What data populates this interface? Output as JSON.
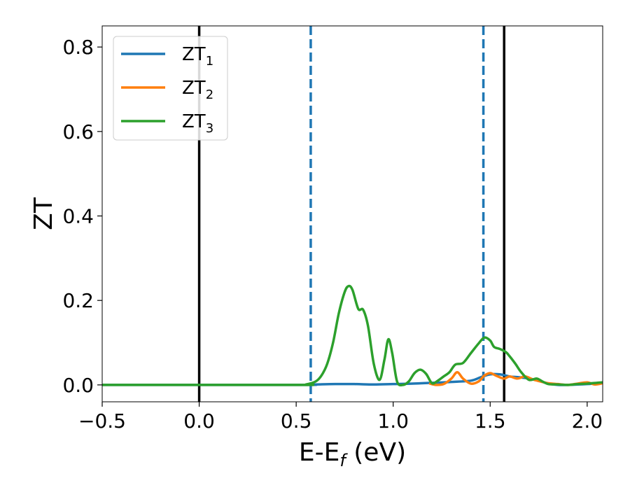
{
  "chart_data": {
    "type": "line",
    "title": "",
    "xlabel": {
      "main": "E-E",
      "sub": "f",
      "suffix": " (eV)"
    },
    "ylabel": "ZT",
    "xlim": [
      -0.5,
      2.08
    ],
    "ylim": [
      -0.04,
      0.85
    ],
    "xticks": [
      -0.5,
      0.0,
      0.5,
      1.0,
      1.5,
      2.0
    ],
    "xtick_labels": [
      "−0.5",
      "0.0",
      "0.5",
      "1.0",
      "1.5",
      "2.0"
    ],
    "yticks": [
      0.0,
      0.2,
      0.4,
      0.6,
      0.8
    ],
    "ytick_labels": [
      "0.0",
      "0.2",
      "0.4",
      "0.6",
      "0.8"
    ],
    "legend_position": "top-left",
    "grid": false,
    "vlines": [
      {
        "x": 0.0,
        "style": "solid",
        "color": "#000000"
      },
      {
        "x": 0.575,
        "style": "dashed",
        "color": "#1f77b4"
      },
      {
        "x": 1.465,
        "style": "dashed",
        "color": "#1f77b4"
      },
      {
        "x": 1.572,
        "style": "solid",
        "color": "#000000"
      }
    ],
    "series": [
      {
        "name": "ZT",
        "sub": "1",
        "color": "#1f77b4",
        "x": [
          -0.5,
          0.5,
          0.6,
          0.7,
          0.8,
          0.9,
          1.0,
          1.1,
          1.2,
          1.3,
          1.4,
          1.45,
          1.5,
          1.55,
          1.6,
          1.65,
          1.7,
          1.75,
          1.8,
          1.85,
          1.9,
          2.0,
          2.08
        ],
        "y": [
          0.0,
          0.0,
          0.001,
          0.002,
          0.002,
          0.001,
          0.002,
          0.003,
          0.005,
          0.007,
          0.01,
          0.018,
          0.025,
          0.025,
          0.02,
          0.018,
          0.015,
          0.01,
          0.003,
          0.0,
          0.0,
          0.002,
          0.005
        ]
      },
      {
        "name": "ZT",
        "sub": "2",
        "color": "#ff7f0e",
        "x": [
          1.19,
          1.22,
          1.26,
          1.3,
          1.33,
          1.36,
          1.4,
          1.44,
          1.47,
          1.5,
          1.53,
          1.57,
          1.6,
          1.64,
          1.68,
          1.72,
          1.76,
          1.8,
          1.85,
          1.9,
          1.95,
          2.0,
          2.04,
          2.08
        ],
        "y": [
          0.003,
          0.0,
          0.002,
          0.015,
          0.03,
          0.015,
          0.003,
          0.008,
          0.022,
          0.028,
          0.022,
          0.015,
          0.02,
          0.015,
          0.02,
          0.013,
          0.008,
          0.004,
          0.002,
          0.0,
          0.003,
          0.006,
          0.001,
          0.004
        ]
      },
      {
        "name": "ZT",
        "sub": "3",
        "color": "#2ca02c",
        "x": [
          -0.5,
          0.5,
          0.55,
          0.6,
          0.63,
          0.66,
          0.69,
          0.72,
          0.75,
          0.77,
          0.79,
          0.82,
          0.845,
          0.87,
          0.9,
          0.93,
          0.955,
          0.975,
          0.995,
          1.02,
          1.05,
          1.08,
          1.11,
          1.14,
          1.17,
          1.2,
          1.23,
          1.26,
          1.29,
          1.32,
          1.36,
          1.4,
          1.44,
          1.47,
          1.5,
          1.52,
          1.55,
          1.58,
          1.6,
          1.63,
          1.66,
          1.7,
          1.74,
          1.77,
          1.8,
          1.85,
          1.9,
          1.95,
          2.0,
          2.05,
          2.08
        ],
        "y": [
          0.0,
          0.0,
          0.001,
          0.008,
          0.022,
          0.05,
          0.1,
          0.17,
          0.22,
          0.234,
          0.225,
          0.18,
          0.178,
          0.14,
          0.05,
          0.012,
          0.06,
          0.108,
          0.075,
          0.008,
          0.0,
          0.008,
          0.028,
          0.036,
          0.026,
          0.004,
          0.01,
          0.02,
          0.03,
          0.048,
          0.052,
          0.075,
          0.098,
          0.112,
          0.105,
          0.09,
          0.085,
          0.078,
          0.068,
          0.05,
          0.03,
          0.012,
          0.015,
          0.008,
          0.002,
          0.001,
          0.0,
          0.002,
          0.003,
          0.005,
          0.006
        ]
      }
    ]
  }
}
